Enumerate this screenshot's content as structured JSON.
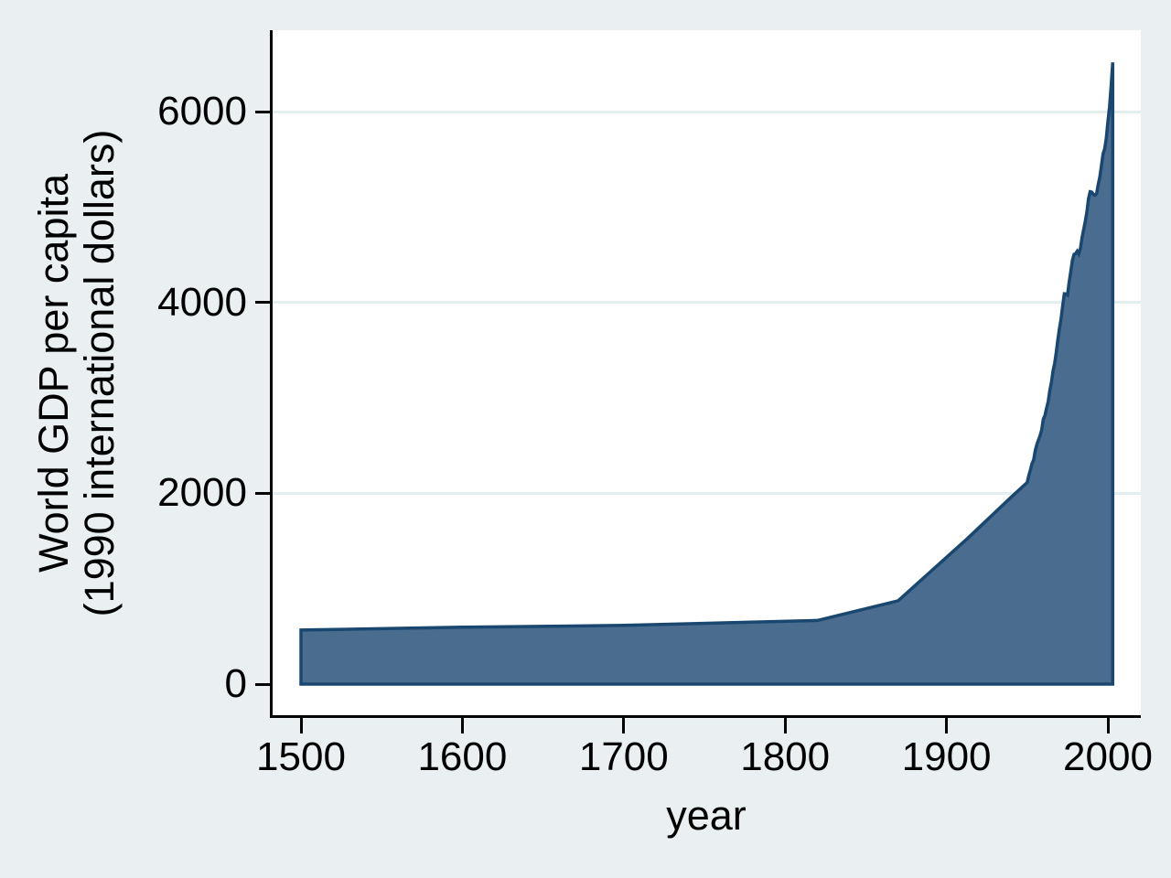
{
  "chart_data": {
    "type": "area",
    "title": "",
    "xlabel": "year",
    "ylabel": "World GDP per capita (1990 international dollars)",
    "ylabel_line1": "World GDP per capita",
    "ylabel_line2": "(1990 international dollars)",
    "x_ticks": [
      1500,
      1600,
      1700,
      1800,
      1900,
      2000
    ],
    "y_ticks": [
      0,
      2000,
      4000,
      6000
    ],
    "xlim": [
      1482,
      2020
    ],
    "ylim": [
      -320,
      6860
    ],
    "grid": "horizontal",
    "legend": "none",
    "series": [
      {
        "name": "World GDP per capita (1990 international dollars)",
        "baseline": 0,
        "points": [
          [
            1500,
            566
          ],
          [
            1600,
            596
          ],
          [
            1700,
            615
          ],
          [
            1820,
            667
          ],
          [
            1870,
            873
          ],
          [
            1913,
            1526
          ],
          [
            1940,
            1958
          ],
          [
            1950,
            2113
          ],
          [
            1951,
            2187
          ],
          [
            1952,
            2245
          ],
          [
            1953,
            2312
          ],
          [
            1954,
            2352
          ],
          [
            1955,
            2446
          ],
          [
            1956,
            2513
          ],
          [
            1957,
            2556
          ],
          [
            1958,
            2605
          ],
          [
            1959,
            2666
          ],
          [
            1960,
            2777
          ],
          [
            1961,
            2815
          ],
          [
            1962,
            2893
          ],
          [
            1963,
            2958
          ],
          [
            1964,
            3075
          ],
          [
            1965,
            3164
          ],
          [
            1966,
            3281
          ],
          [
            1967,
            3359
          ],
          [
            1968,
            3479
          ],
          [
            1969,
            3608
          ],
          [
            1970,
            3729
          ],
          [
            1971,
            3826
          ],
          [
            1972,
            3966
          ],
          [
            1973,
            4091
          ],
          [
            1974,
            4089
          ],
          [
            1975,
            4077
          ],
          [
            1976,
            4215
          ],
          [
            1977,
            4321
          ],
          [
            1978,
            4442
          ],
          [
            1979,
            4504
          ],
          [
            1980,
            4511
          ],
          [
            1981,
            4537
          ],
          [
            1982,
            4510
          ],
          [
            1983,
            4567
          ],
          [
            1984,
            4681
          ],
          [
            1985,
            4763
          ],
          [
            1986,
            4850
          ],
          [
            1987,
            4953
          ],
          [
            1988,
            5086
          ],
          [
            1989,
            5160
          ],
          [
            1990,
            5157
          ],
          [
            1991,
            5133
          ],
          [
            1992,
            5124
          ],
          [
            1993,
            5142
          ],
          [
            1994,
            5234
          ],
          [
            1995,
            5316
          ],
          [
            1996,
            5429
          ],
          [
            1997,
            5556
          ],
          [
            1998,
            5610
          ],
          [
            1999,
            5717
          ],
          [
            2000,
            5893
          ],
          [
            2001,
            6049
          ],
          [
            2002,
            6261
          ],
          [
            2003,
            6516
          ]
        ]
      }
    ]
  },
  "colors": {
    "background": "#eaf0f2",
    "plot_background": "#ffffff",
    "area_fill": "#496c8f",
    "area_line": "#1a476f",
    "gridline": "#e2eef0",
    "axis": "#000000",
    "text": "#000000"
  }
}
